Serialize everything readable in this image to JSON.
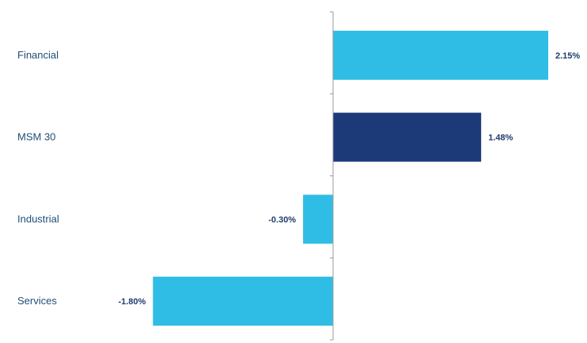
{
  "chart_data": {
    "type": "bar",
    "orientation": "horizontal",
    "categories": [
      "Financial",
      "MSM 30",
      "Industrial",
      "Services"
    ],
    "values": [
      2.15,
      1.48,
      -0.3,
      -1.8
    ],
    "value_labels": [
      "2.15%",
      "1.48%",
      "-0.30%",
      "-1.80%"
    ],
    "colors": [
      "#2fbde6",
      "#1d3a78",
      "#2fbde6",
      "#2fbde6"
    ],
    "title": "",
    "xlabel": "",
    "ylabel": "",
    "xlim": [
      -1.8,
      2.15
    ],
    "grid": false,
    "legend": "none"
  }
}
